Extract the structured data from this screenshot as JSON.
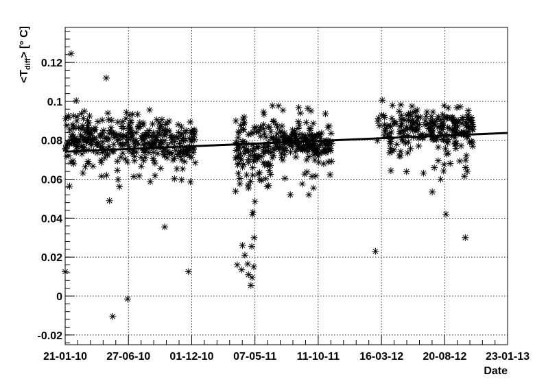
{
  "chart_data": {
    "type": "scatter",
    "xlabel": "Date",
    "ylabel_main": "<T",
    "ylabel_sub": "diff",
    "ylabel_rest": "> [° C]",
    "x_is_date": true,
    "x_range": [
      "2010-01-21",
      "2013-01-23"
    ],
    "x_ticks": [
      {
        "date": "2010-01-21",
        "label": "21-01-10"
      },
      {
        "date": "2010-06-27",
        "label": "27-06-10"
      },
      {
        "date": "2010-12-01",
        "label": "01-12-10"
      },
      {
        "date": "2011-05-07",
        "label": "07-05-11"
      },
      {
        "date": "2011-10-11",
        "label": "11-10-11"
      },
      {
        "date": "2012-03-16",
        "label": "16-03-12"
      },
      {
        "date": "2012-08-20",
        "label": "20-08-12"
      },
      {
        "date": "2013-01-23",
        "label": "23-01-13"
      }
    ],
    "ylim": [
      -0.025,
      0.138
    ],
    "y_ticks": [
      {
        "value": -0.02,
        "label": "-0.02"
      },
      {
        "value": 0,
        "label": "0"
      },
      {
        "value": 0.02,
        "label": "0.02"
      },
      {
        "value": 0.04,
        "label": "0.04"
      },
      {
        "value": 0.06,
        "label": "0.06"
      },
      {
        "value": 0.08,
        "label": "0.08"
      },
      {
        "value": 0.1,
        "label": "0.1"
      },
      {
        "value": 0.12,
        "label": "0.12"
      }
    ],
    "grid": true,
    "marker": "asterisk",
    "fit_line": {
      "x": [
        "2010-01-21",
        "2013-01-23"
      ],
      "y": [
        0.0742,
        0.0838
      ]
    },
    "outliers": [
      {
        "date": "2010-01-21",
        "value": 0.0125
      },
      {
        "date": "2010-02-05",
        "value": 0.1245
      },
      {
        "date": "2010-05-03",
        "value": 0.112
      },
      {
        "date": "2010-05-11",
        "value": 0.049
      },
      {
        "date": "2010-05-19",
        "value": -0.0105
      },
      {
        "date": "2010-06-25",
        "value": -0.0015
      },
      {
        "date": "2010-09-25",
        "value": 0.0355
      },
      {
        "date": "2010-11-23",
        "value": 0.0125
      },
      {
        "date": "2011-03-24",
        "value": 0.016
      },
      {
        "date": "2011-04-04",
        "value": 0.0135
      },
      {
        "date": "2011-04-06",
        "value": 0.026
      },
      {
        "date": "2011-04-12",
        "value": 0.021
      },
      {
        "date": "2011-04-19",
        "value": 0.0165
      },
      {
        "date": "2011-04-21",
        "value": 0.011
      },
      {
        "date": "2011-04-27",
        "value": 0.0055
      },
      {
        "date": "2011-04-29",
        "value": 0.0255
      },
      {
        "date": "2011-04-30",
        "value": 0.0095
      },
      {
        "date": "2011-05-01",
        "value": 0.042
      },
      {
        "date": "2011-05-02",
        "value": 0.043
      },
      {
        "date": "2011-05-04",
        "value": 0.015
      },
      {
        "date": "2011-05-05",
        "value": 0.03
      },
      {
        "date": "2011-05-07",
        "value": 0.0485
      },
      {
        "date": "2012-03-01",
        "value": 0.023
      },
      {
        "date": "2012-07-20",
        "value": 0.0535
      },
      {
        "date": "2012-08-10",
        "value": 0.06
      },
      {
        "date": "2012-08-23",
        "value": 0.042
      },
      {
        "date": "2012-10-10",
        "value": 0.03
      },
      {
        "date": "2012-10-11",
        "value": 0.066
      }
    ],
    "clusters": [
      {
        "start": "2010-01-21",
        "end": "2010-09-30",
        "n": 300,
        "center": 0.08,
        "spread": 0.0085,
        "low_tail": 0.056,
        "high_tail": 0.104
      },
      {
        "start": "2010-10-01",
        "end": "2010-12-10",
        "n": 80,
        "center": 0.077,
        "spread": 0.0075,
        "low_tail": 0.055,
        "high_tail": 0.096
      },
      {
        "start": "2011-03-20",
        "end": "2011-06-15",
        "n": 110,
        "center": 0.076,
        "spread": 0.01,
        "low_tail": 0.052,
        "high_tail": 0.099
      },
      {
        "start": "2011-06-15",
        "end": "2011-11-15",
        "n": 210,
        "center": 0.079,
        "spread": 0.0065,
        "low_tail": 0.052,
        "high_tail": 0.099
      },
      {
        "start": "2012-03-05",
        "end": "2012-07-15",
        "n": 110,
        "center": 0.087,
        "spread": 0.0075,
        "low_tail": 0.062,
        "high_tail": 0.101
      },
      {
        "start": "2012-07-15",
        "end": "2012-10-31",
        "n": 140,
        "center": 0.086,
        "spread": 0.0065,
        "low_tail": 0.06,
        "high_tail": 0.098
      }
    ]
  }
}
